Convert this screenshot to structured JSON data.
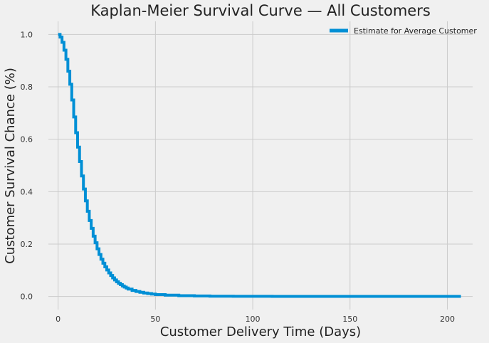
{
  "chart_data": {
    "type": "line",
    "title": "Kaplan-Meier Survival Curve — All Customers",
    "xlabel": "Customer Delivery Time (Days)",
    "ylabel": "Customer Survival Chance (%)",
    "xlim": [
      -5,
      213
    ],
    "ylim": [
      -0.05,
      1.05
    ],
    "x_ticks": [
      0,
      50,
      100,
      150,
      200
    ],
    "y_ticks": [
      0.0,
      0.2,
      0.4,
      0.6,
      0.8,
      1.0
    ],
    "x_tick_labels": [
      "0",
      "50",
      "100",
      "150",
      "200"
    ],
    "y_tick_labels": [
      "0.0",
      "0.2",
      "0.4",
      "0.6",
      "0.8",
      "1.0"
    ],
    "grid": true,
    "legend_position": "top-right",
    "step": "post",
    "series": [
      {
        "name": "Estimate for Average Customer",
        "color": "#008fd5",
        "x": [
          0,
          1,
          2,
          3,
          4,
          5,
          6,
          7,
          8,
          9,
          10,
          11,
          12,
          13,
          14,
          15,
          16,
          17,
          18,
          19,
          20,
          21,
          22,
          23,
          24,
          25,
          26,
          27,
          28,
          29,
          30,
          31,
          32,
          33,
          34,
          35,
          36,
          38,
          40,
          42,
          44,
          46,
          48,
          50,
          55,
          62,
          70,
          78,
          90,
          110,
          150,
          207
        ],
        "y": [
          1.0,
          0.99,
          0.97,
          0.94,
          0.905,
          0.86,
          0.81,
          0.75,
          0.685,
          0.625,
          0.57,
          0.515,
          0.46,
          0.41,
          0.365,
          0.325,
          0.29,
          0.26,
          0.23,
          0.205,
          0.182,
          0.16,
          0.142,
          0.127,
          0.113,
          0.101,
          0.09,
          0.08,
          0.071,
          0.063,
          0.056,
          0.05,
          0.045,
          0.04,
          0.036,
          0.032,
          0.028,
          0.023,
          0.019,
          0.016,
          0.013,
          0.011,
          0.009,
          0.007,
          0.005,
          0.003,
          0.002,
          0.001,
          0.0005,
          0.0003,
          0.0002,
          0.0002
        ]
      }
    ]
  }
}
